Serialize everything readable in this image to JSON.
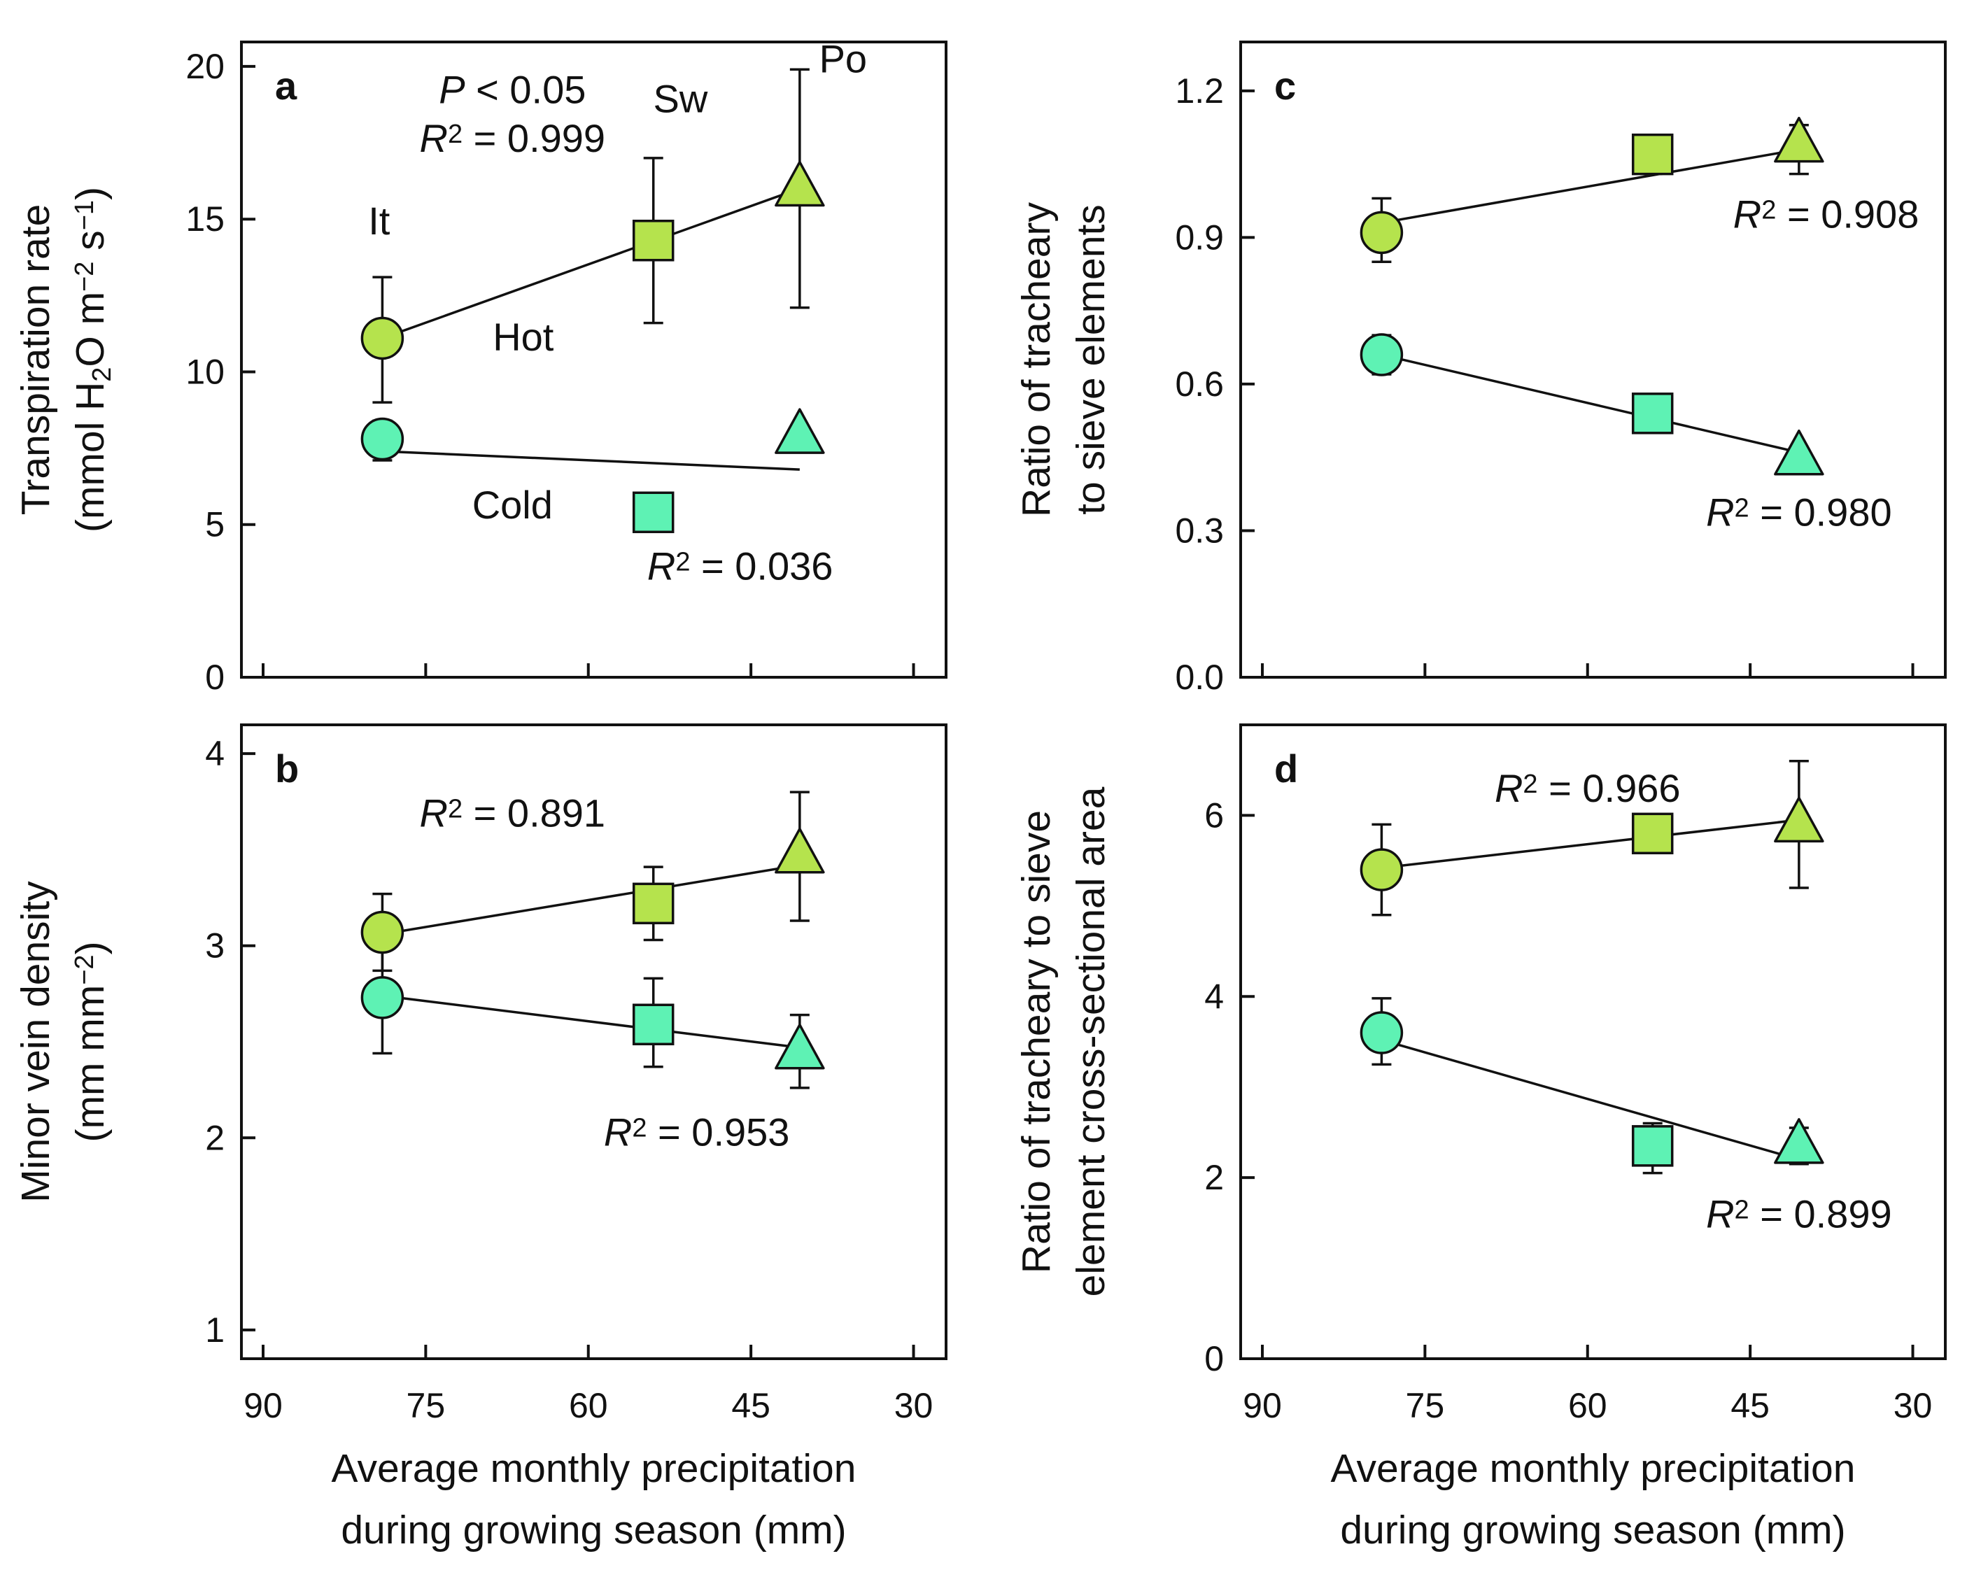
{
  "chart_data": [
    {
      "panel": "a",
      "type": "scatter",
      "ylabel_line1": "Transpiration rate",
      "ylabel_line2": [
        "(mmol H",
        "2",
        "O m",
        "−2",
        " s",
        "−1",
        ")"
      ],
      "xlim": [
        92,
        27
      ],
      "ylim": [
        0,
        20.8
      ],
      "xticks": [
        90,
        75,
        60,
        45,
        30
      ],
      "yticks": [
        "0",
        "5",
        "10",
        "15",
        "20"
      ],
      "ytick_values": [
        0,
        5,
        10,
        15,
        20
      ],
      "show_xticklabels": false,
      "xlabel_lines": [],
      "site_labels": [
        {
          "text": "It",
          "x": 79.3,
          "y": 14.5
        },
        {
          "text": "Sw",
          "x": 51.5,
          "y": 18.5
        },
        {
          "text": "Po",
          "x": 36.5,
          "y": 19.8
        }
      ],
      "stats": [
        {
          "italic": "P",
          "rest": " < 0.05",
          "x": 67,
          "y": 18.8
        },
        {
          "italic": "R",
          "sup": "2",
          "rest": " = 0.999",
          "x": 67,
          "y": 17.2
        },
        {
          "italic": "R",
          "sup": "2",
          "rest": " = 0.036",
          "x": 46,
          "y": 3.2
        }
      ],
      "group_labels": [
        {
          "text": "Hot",
          "x": 66,
          "y": 10.7
        },
        {
          "text": "Cold",
          "x": 67,
          "y": 5.2
        }
      ],
      "series": [
        {
          "name": "Hot",
          "color": "#b5e34d",
          "x": [
            79,
            54,
            40.5
          ],
          "y": [
            11.1,
            14.3,
            16.0
          ],
          "err_low": [
            9.0,
            11.6,
            12.1
          ],
          "err_high": [
            13.1,
            17.0,
            19.9
          ],
          "markers": [
            "circle",
            "square",
            "triangle"
          ],
          "fit": {
            "x": [
              79,
              40.5
            ],
            "y": [
              11.1,
              16.0
            ]
          }
        },
        {
          "name": "Cold",
          "color": "#5ef2b4",
          "x": [
            79,
            54,
            40.5
          ],
          "y": [
            7.8,
            5.4,
            7.9
          ],
          "err_low": [
            7.1,
            null,
            null
          ],
          "err_high": [
            8.4,
            null,
            null
          ],
          "markers": [
            "circle",
            "square",
            "triangle"
          ],
          "fit": {
            "x": [
              79,
              40.5
            ],
            "y": [
              7.4,
              6.8
            ]
          }
        }
      ]
    },
    {
      "panel": "b",
      "type": "scatter",
      "ylabel_line1": "Minor vein density",
      "ylabel_line2": [
        "(mm mm",
        "−2",
        ")"
      ],
      "xlabel_lines": [
        "Average monthly precipitation",
        "during growing season (mm)"
      ],
      "xlim": [
        92,
        27
      ],
      "ylim": [
        0.85,
        4.15
      ],
      "xticks": [
        90,
        75,
        60,
        45,
        30
      ],
      "yticks": [
        "1",
        "2",
        "3",
        "4"
      ],
      "ytick_values": [
        1,
        2,
        3,
        4
      ],
      "show_xticklabels": true,
      "site_labels": [],
      "group_labels": [],
      "stats": [
        {
          "italic": "R",
          "sup": "2",
          "rest": " = 0.891",
          "x": 67,
          "y": 3.62
        },
        {
          "italic": "R",
          "sup": "2",
          "rest": " = 0.953",
          "x": 50,
          "y": 1.96
        }
      ],
      "series": [
        {
          "name": "Hot",
          "color": "#b5e34d",
          "x": [
            79,
            54,
            40.5
          ],
          "y": [
            3.07,
            3.22,
            3.47
          ],
          "err_low": [
            2.87,
            3.03,
            3.13
          ],
          "err_high": [
            3.27,
            3.41,
            3.8
          ],
          "markers": [
            "circle",
            "square",
            "triangle"
          ],
          "fit": {
            "x": [
              79,
              40.5
            ],
            "y": [
              3.06,
              3.42
            ]
          }
        },
        {
          "name": "Cold",
          "color": "#5ef2b4",
          "x": [
            79,
            54,
            40.5
          ],
          "y": [
            2.73,
            2.59,
            2.45
          ],
          "err_low": [
            2.44,
            2.37,
            2.26
          ],
          "err_high": [
            3.02,
            2.83,
            2.64
          ],
          "markers": [
            "circle",
            "square",
            "triangle"
          ],
          "fit": {
            "x": [
              79,
              40.5
            ],
            "y": [
              2.74,
              2.47
            ]
          }
        }
      ]
    },
    {
      "panel": "c",
      "type": "scatter",
      "ylabel_line1": "Ratio of tracheary",
      "ylabel_line2": [
        "to sieve elements"
      ],
      "xlim": [
        92,
        27
      ],
      "ylim": [
        0,
        1.3
      ],
      "xticks": [
        90,
        75,
        60,
        45,
        30
      ],
      "yticks": [
        "0.0",
        "0.3",
        "0.6",
        "0.9",
        "1.2"
      ],
      "ytick_values": [
        0,
        0.3,
        0.6,
        0.9,
        1.2
      ],
      "show_xticklabels": false,
      "xlabel_lines": [],
      "site_labels": [],
      "group_labels": [],
      "stats": [
        {
          "italic": "R",
          "sup": "2",
          "rest": " = 0.908",
          "x": 38,
          "y": 0.92
        },
        {
          "italic": "R",
          "sup": "2",
          "rest": " = 0.980",
          "x": 40.5,
          "y": 0.31
        }
      ],
      "series": [
        {
          "name": "Hot",
          "color": "#b5e34d",
          "x": [
            79,
            54,
            40.5
          ],
          "y": [
            0.91,
            1.07,
            1.09
          ],
          "err_low": [
            0.85,
            1.03,
            1.03
          ],
          "err_high": [
            0.98,
            1.11,
            1.13
          ],
          "markers": [
            "circle",
            "square",
            "triangle"
          ],
          "fit": {
            "x": [
              79,
              40.5
            ],
            "y": [
              0.93,
              1.08
            ]
          }
        },
        {
          "name": "Cold",
          "color": "#5ef2b4",
          "x": [
            79,
            54,
            40.5
          ],
          "y": [
            0.66,
            0.54,
            0.45
          ],
          "err_low": [
            0.62,
            null,
            null
          ],
          "err_high": [
            0.7,
            null,
            null
          ],
          "markers": [
            "circle",
            "square",
            "triangle"
          ],
          "fit": {
            "x": [
              79,
              40.5
            ],
            "y": [
              0.66,
              0.46
            ]
          }
        }
      ]
    },
    {
      "panel": "d",
      "type": "scatter",
      "ylabel_line1": "Ratio of tracheary to sieve",
      "ylabel_line2": [
        "element cross-sectional area"
      ],
      "xlabel_lines": [
        "Average monthly precipitation",
        "during growing season (mm)"
      ],
      "xlim": [
        92,
        27
      ],
      "ylim": [
        0,
        7.0
      ],
      "xticks": [
        90,
        75,
        60,
        45,
        30
      ],
      "yticks": [
        "0",
        "2",
        "4",
        "6"
      ],
      "ytick_values": [
        0,
        2,
        4,
        6
      ],
      "show_xticklabels": true,
      "site_labels": [],
      "group_labels": [],
      "stats": [
        {
          "italic": "R",
          "sup": "2",
          "rest": " = 0.966",
          "x": 60,
          "y": 6.15
        },
        {
          "italic": "R",
          "sup": "2",
          "rest": " = 0.899",
          "x": 40.5,
          "y": 1.45
        }
      ],
      "series": [
        {
          "name": "Hot",
          "color": "#b5e34d",
          "x": [
            79,
            54,
            40.5
          ],
          "y": [
            5.4,
            5.8,
            5.9
          ],
          "err_low": [
            4.9,
            null,
            5.2
          ],
          "err_high": [
            5.9,
            null,
            6.6
          ],
          "markers": [
            "circle",
            "square",
            "triangle"
          ],
          "fit": {
            "x": [
              79,
              40.5
            ],
            "y": [
              5.42,
              5.95
            ]
          }
        },
        {
          "name": "Cold",
          "color": "#5ef2b4",
          "x": [
            79,
            54,
            40.5
          ],
          "y": [
            3.6,
            2.35,
            2.35
          ],
          "err_low": [
            3.25,
            2.05,
            2.15
          ],
          "err_high": [
            3.98,
            2.6,
            2.55
          ],
          "markers": [
            "circle",
            "square",
            "triangle"
          ],
          "fit": {
            "x": [
              79,
              40.5
            ],
            "y": [
              3.52,
              2.2
            ]
          }
        }
      ]
    }
  ]
}
